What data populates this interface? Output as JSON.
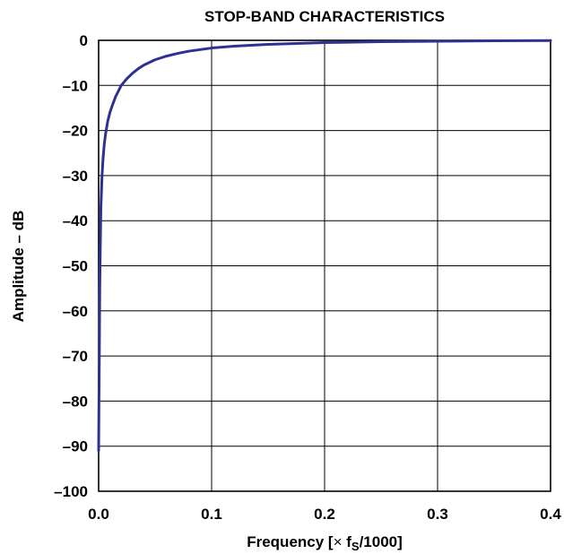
{
  "chart_data": {
    "type": "line",
    "title": "STOP-BAND CHARACTERISTICS",
    "xlabel": {
      "prefix": "Frequency [",
      "times": "×",
      "f": " f",
      "subscript": "S",
      "suffix": "/1000]"
    },
    "ylabel": "Amplitude – dB",
    "xlim": [
      0,
      0.4
    ],
    "ylim": [
      -100,
      0
    ],
    "xticks": [
      0.0,
      0.1,
      0.2,
      0.3,
      0.4
    ],
    "xtick_labels": [
      "0.0",
      "0.1",
      "0.2",
      "0.3",
      "0.4"
    ],
    "yticks": [
      0,
      -10,
      -20,
      -30,
      -40,
      -50,
      -60,
      -70,
      -80,
      -90,
      -100
    ],
    "ytick_labels": [
      "0",
      "–10",
      "–20",
      "–30",
      "–40",
      "–50",
      "–60",
      "–70",
      "–80",
      "–90",
      "–100"
    ],
    "grid": true,
    "line_color": "#2E3192",
    "series": [
      {
        "x": [
          0.0,
          0.0003,
          0.0006,
          0.001,
          0.0015,
          0.002,
          0.003,
          0.004,
          0.005,
          0.006,
          0.008,
          0.01,
          0.012,
          0.015,
          0.02,
          0.025,
          0.03,
          0.035,
          0.04,
          0.05,
          0.06,
          0.07,
          0.08,
          0.1,
          0.12,
          0.15,
          0.2,
          0.25,
          0.3,
          0.35,
          0.4
        ],
        "y": [
          -91,
          -80,
          -70,
          -55,
          -45,
          -37,
          -30,
          -26,
          -23,
          -21,
          -18,
          -16,
          -14.5,
          -12.5,
          -10,
          -8.5,
          -7.3,
          -6.3,
          -5.5,
          -4.3,
          -3.5,
          -2.9,
          -2.4,
          -1.7,
          -1.3,
          -0.9,
          -0.5,
          -0.3,
          -0.2,
          -0.1,
          -0.05
        ]
      }
    ]
  }
}
